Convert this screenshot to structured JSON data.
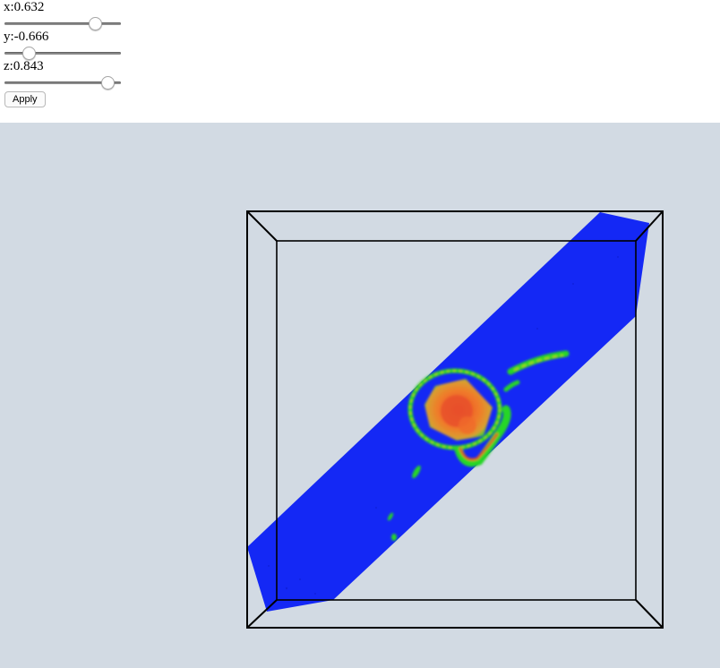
{
  "controls": {
    "x": {
      "label": "x:0.632",
      "value": 0.632
    },
    "y": {
      "label": "y:-0.666",
      "value": -0.666
    },
    "z": {
      "label": "z:0.843",
      "value": 0.843
    },
    "apply_label": "Apply"
  },
  "viewport": {
    "background": "#d2dae3",
    "slice_color": "#1428f5",
    "hot_color": "#f05a28",
    "mid_color": "#22dd22",
    "outline_color": "#000000"
  }
}
